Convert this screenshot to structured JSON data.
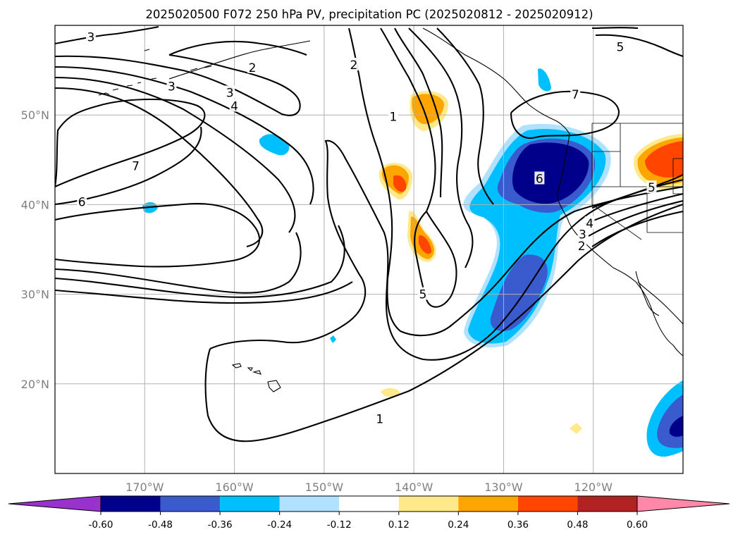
{
  "chart_data": {
    "type": "map",
    "title": "2025020500 F072 250 hPa PV, precipitation PC (2025020812 - 2025020912)",
    "lon_range": [
      -180,
      -110
    ],
    "lat_range": [
      10,
      60
    ],
    "lon_ticks": [
      {
        "value": -170,
        "label": "170°W"
      },
      {
        "value": -160,
        "label": "160°W"
      },
      {
        "value": -150,
        "label": "150°W"
      },
      {
        "value": -140,
        "label": "140°W"
      },
      {
        "value": -130,
        "label": "130°W"
      },
      {
        "value": -120,
        "label": "120°W"
      }
    ],
    "lat_ticks": [
      {
        "value": 20,
        "label": "20°N"
      },
      {
        "value": 30,
        "label": "30°N"
      },
      {
        "value": 40,
        "label": "40°N"
      },
      {
        "value": 50,
        "label": "50°N"
      }
    ],
    "grid": true,
    "colorbar": {
      "levels": [
        "-0.60",
        "-0.48",
        "-0.36",
        "-0.24",
        "-0.12",
        "0.12",
        "0.24",
        "0.36",
        "0.48",
        "0.60"
      ],
      "colors": [
        "#9932cc",
        "#00008b",
        "#3a5bcd",
        "#00bfff",
        "#b0e2ff",
        "#ffffff",
        "#ffe98a",
        "#ffa500",
        "#ff4500",
        "#b22222",
        "#ff88aa"
      ]
    },
    "contour_labels": [
      {
        "text": "3",
        "lon": -176.0,
        "lat": 58.7
      },
      {
        "text": "3",
        "lon": -167.0,
        "lat": 53.2
      },
      {
        "text": "2",
        "lon": -158.0,
        "lat": 55.3
      },
      {
        "text": "3",
        "lon": -160.5,
        "lat": 52.5
      },
      {
        "text": "4",
        "lon": -160.0,
        "lat": 51.0
      },
      {
        "text": "7",
        "lon": -171.0,
        "lat": 44.3
      },
      {
        "text": "6",
        "lon": -177.0,
        "lat": 40.3
      },
      {
        "text": "2",
        "lon": -146.7,
        "lat": 55.6
      },
      {
        "text": "1",
        "lon": -142.3,
        "lat": 49.8
      },
      {
        "text": "5",
        "lon": -139.0,
        "lat": 30.0
      },
      {
        "text": "1",
        "lon": -143.8,
        "lat": 16.1
      },
      {
        "text": "7",
        "lon": -122.0,
        "lat": 52.3
      },
      {
        "text": "6",
        "lon": -126.0,
        "lat": 42.9
      },
      {
        "text": "5",
        "lon": -117.0,
        "lat": 57.6
      },
      {
        "text": "4",
        "lon": -120.4,
        "lat": 37.9
      },
      {
        "text": "3",
        "lon": -121.2,
        "lat": 36.7
      },
      {
        "text": "2",
        "lon": -121.3,
        "lat": 35.4
      },
      {
        "text": "5",
        "lon": -113.5,
        "lat": 41.9
      }
    ]
  }
}
